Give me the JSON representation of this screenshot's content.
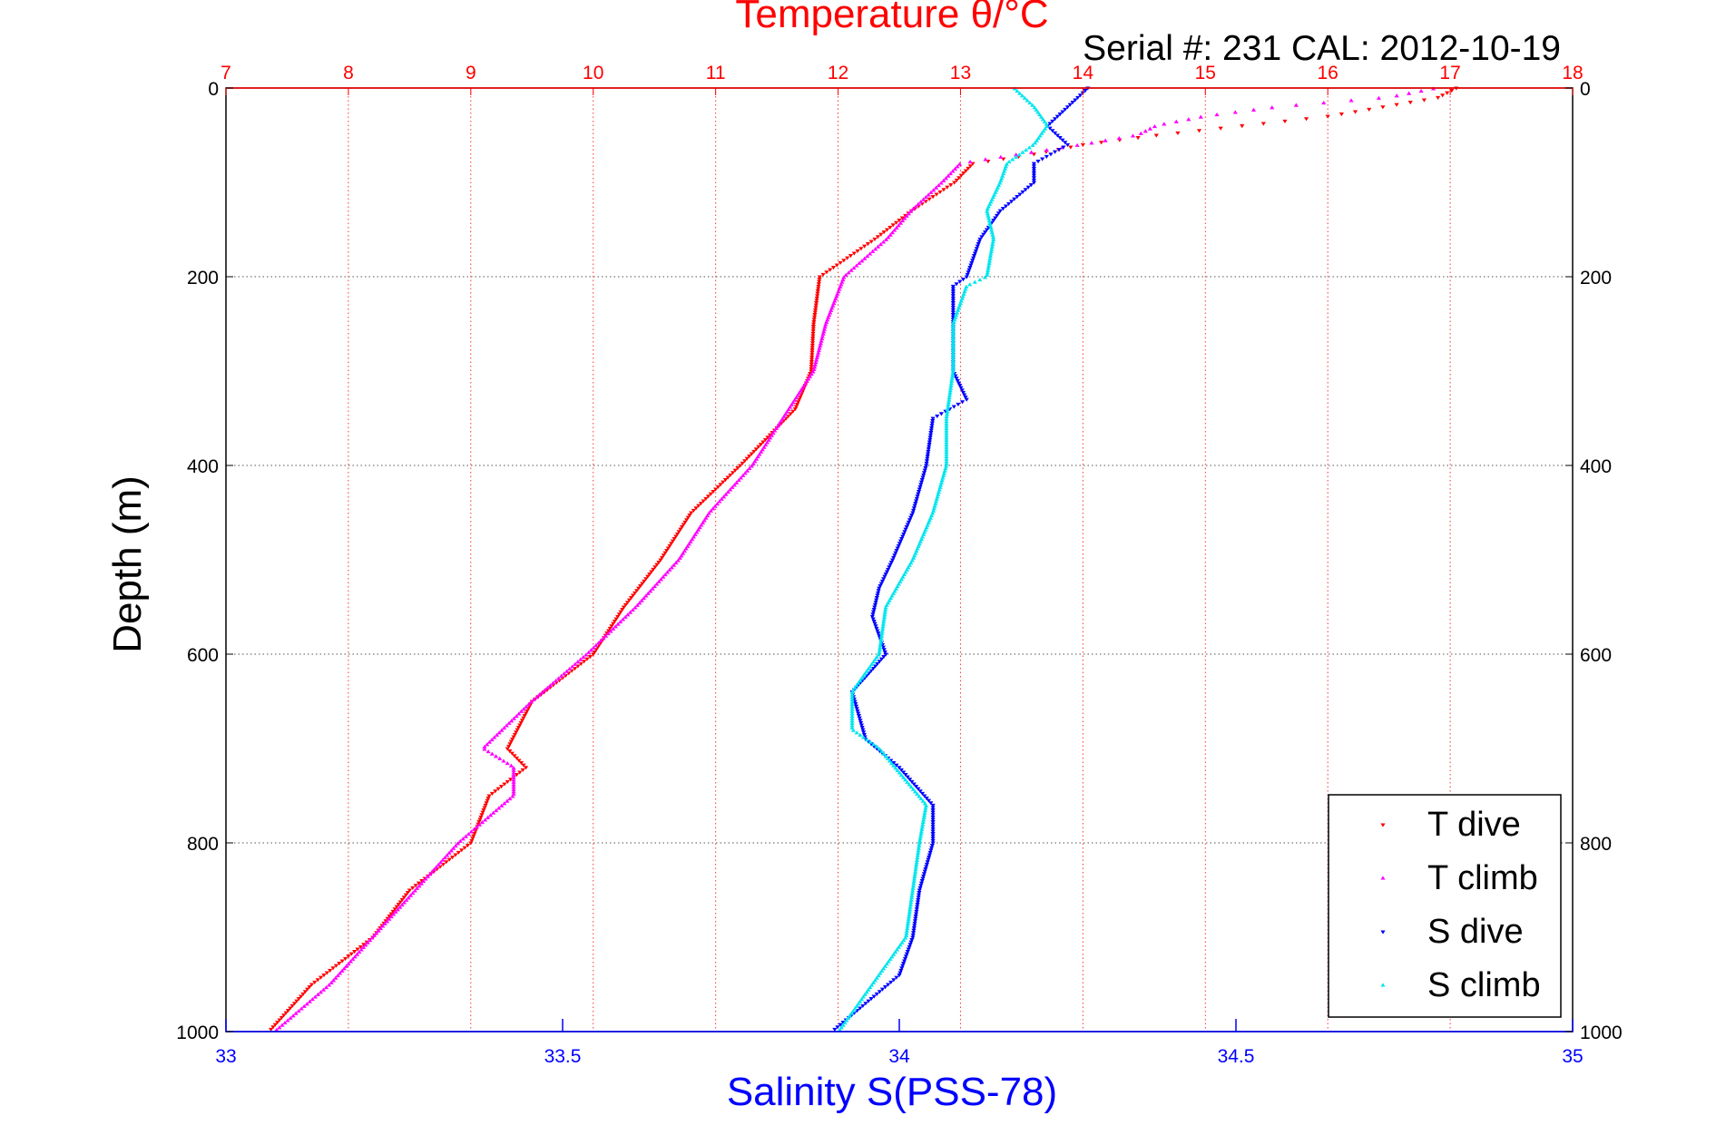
{
  "chart_data": {
    "type": "scatter",
    "title": "Temperature θ/°C",
    "subtitle": "Serial #: 231  CAL: 2012-10-19",
    "ylabel": "Depth (m)",
    "xlabel": "Salinity S(PSS-78)",
    "grid": true,
    "legend_position": "bottom-right",
    "y_axis": {
      "range": [
        0,
        1000
      ],
      "reversed": true,
      "ticks": [
        "0",
        "200",
        "400",
        "600",
        "800",
        "1000"
      ]
    },
    "temperature_axis": {
      "position": "top",
      "range": [
        7,
        18
      ],
      "ticks": [
        "7",
        "8",
        "9",
        "10",
        "11",
        "12",
        "13",
        "14",
        "15",
        "16",
        "17",
        "18"
      ],
      "color": "#ff0000"
    },
    "salinity_axis": {
      "position": "bottom",
      "range": [
        33,
        35
      ],
      "ticks": [
        "33",
        "33.5",
        "34",
        "34.5",
        "35"
      ],
      "color": "#0000ff"
    },
    "series": [
      {
        "name": "T dive",
        "axis": "temperature",
        "color": "#ff0000",
        "marker": "triangle-down",
        "depth": [
          0,
          10,
          30,
          50,
          60,
          70,
          80,
          100,
          130,
          160,
          200,
          250,
          300,
          340,
          400,
          450,
          500,
          550,
          600,
          650,
          700,
          720,
          750,
          800,
          850,
          900,
          950,
          1000
        ],
        "values": [
          17.05,
          16.9,
          16.0,
          14.6,
          14.0,
          13.6,
          13.1,
          12.95,
          12.6,
          12.3,
          11.85,
          11.8,
          11.78,
          11.65,
          11.2,
          10.8,
          10.55,
          10.25,
          10.0,
          9.5,
          9.3,
          9.45,
          9.15,
          9.0,
          8.5,
          8.2,
          7.7,
          7.35
        ]
      },
      {
        "name": "T climb",
        "axis": "temperature",
        "color": "#ff00ff",
        "marker": "triangle-up",
        "depth": [
          0,
          10,
          20,
          30,
          40,
          50,
          60,
          70,
          80,
          100,
          130,
          160,
          200,
          250,
          300,
          340,
          400,
          450,
          500,
          550,
          600,
          650,
          700,
          720,
          750,
          800,
          850,
          900,
          950,
          1000
        ],
        "values": [
          16.9,
          16.5,
          15.6,
          15.0,
          14.6,
          14.45,
          14.0,
          13.5,
          13.0,
          12.85,
          12.6,
          12.4,
          12.05,
          11.9,
          11.8,
          11.6,
          11.3,
          10.95,
          10.7,
          10.35,
          9.95,
          9.5,
          9.1,
          9.35,
          9.35,
          8.9,
          8.55,
          8.2,
          7.85,
          7.4
        ]
      },
      {
        "name": "S dive",
        "axis": "salinity",
        "color": "#0000ff",
        "marker": "triangle-down",
        "depth": [
          0,
          20,
          40,
          60,
          80,
          100,
          130,
          160,
          200,
          210,
          250,
          300,
          330,
          350,
          400,
          450,
          500,
          530,
          560,
          600,
          640,
          690,
          720,
          760,
          800,
          850,
          900,
          940,
          970,
          1000
        ],
        "values": [
          34.28,
          34.25,
          34.22,
          34.25,
          34.2,
          34.2,
          34.15,
          34.12,
          34.1,
          34.08,
          34.08,
          34.08,
          34.1,
          34.05,
          34.04,
          34.02,
          33.99,
          33.97,
          33.96,
          33.98,
          33.93,
          33.95,
          34.0,
          34.05,
          34.05,
          34.03,
          34.02,
          34.0,
          33.95,
          33.9
        ]
      },
      {
        "name": "S climb",
        "axis": "salinity",
        "color": "#00e5ee",
        "marker": "triangle-up",
        "depth": [
          0,
          20,
          40,
          60,
          80,
          100,
          130,
          160,
          200,
          210,
          250,
          300,
          350,
          400,
          450,
          500,
          550,
          600,
          640,
          680,
          700,
          760,
          800,
          850,
          900,
          950,
          1000
        ],
        "values": [
          34.17,
          34.2,
          34.22,
          34.2,
          34.16,
          34.15,
          34.13,
          34.14,
          34.13,
          34.1,
          34.08,
          34.08,
          34.07,
          34.07,
          34.05,
          34.02,
          33.98,
          33.97,
          33.93,
          33.93,
          33.97,
          34.04,
          34.03,
          34.02,
          34.01,
          33.96,
          33.91
        ]
      }
    ]
  }
}
